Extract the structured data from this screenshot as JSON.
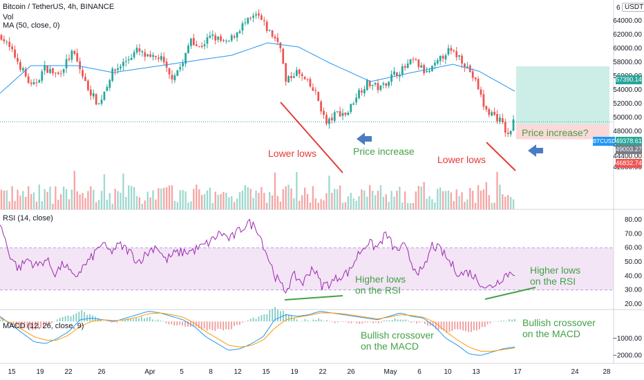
{
  "header": {
    "symbol": "Bitcoin / TetherUS, 4h, BINANCE",
    "vol": "Vol",
    "ma": "MA (50, close, 0)",
    "rsi": "RSI (14, close)",
    "macd": "MACD (12, 26, close, 9)",
    "currency": "USDT",
    "scale_digit": "6"
  },
  "price_tags": {
    "target": "57390.14",
    "symbol_tag": "BTCUSDT",
    "last": "49378.61",
    "entry": "49003.27",
    "stop": "46832.74"
  },
  "annotations": {
    "lower_lows_1": "Lower lows",
    "price_increase": "Price increase",
    "lower_lows_2": "Lower lows",
    "price_increase_q": "Price increase?",
    "higher_lows_1": [
      "Higher lows",
      "on the RSI"
    ],
    "higher_lows_2": [
      "Higher lows",
      "on the RSI"
    ],
    "bullish_1": [
      "Bullish crossover",
      "on the MACD"
    ],
    "bullish_2": [
      "Bullish crossover",
      "on the MACD"
    ]
  },
  "colors": {
    "up": "#26a69a",
    "down": "#ef5350",
    "ma": "#2196f3",
    "rsi": "#9c27b0",
    "rsi_band": "#f3e5f5",
    "annotation_red": "#e53935",
    "annotation_green": "#43a047",
    "arrow": "#4a7cc4",
    "target_zone": "#cdeee7",
    "stop_zone": "#fcd9d9"
  },
  "chart_data": [
    {
      "type": "candlestick",
      "ylim": [
        41500,
        66000
      ],
      "y_ticks": [
        "64000.00",
        "62000.00",
        "60000.00",
        "58000.00",
        "56000.00",
        "54000.00",
        "52000.00",
        "50000.00",
        "48000.00",
        "46000.00",
        "44400.00",
        "42800.00"
      ],
      "x_ticks": [
        "15",
        "19",
        "22",
        "26",
        "Apr",
        "5",
        "8",
        "12",
        "15",
        "19",
        "22",
        "26",
        "May",
        "6",
        "10",
        "13",
        "17",
        "24",
        "28"
      ],
      "close_path": [
        [
          0,
          61800
        ],
        [
          0.03,
          58400
        ],
        [
          0.06,
          54200
        ],
        [
          0.085,
          57200
        ],
        [
          0.11,
          56100
        ],
        [
          0.14,
          59500
        ],
        [
          0.165,
          54800
        ],
        [
          0.19,
          51800
        ],
        [
          0.215,
          56400
        ],
        [
          0.24,
          58000
        ],
        [
          0.265,
          59700
        ],
        [
          0.29,
          58400
        ],
        [
          0.31,
          58800
        ],
        [
          0.33,
          55700
        ],
        [
          0.355,
          57800
        ],
        [
          0.37,
          61600
        ],
        [
          0.385,
          60000
        ],
        [
          0.41,
          61800
        ],
        [
          0.44,
          60600
        ],
        [
          0.47,
          63300
        ],
        [
          0.5,
          64800
        ],
        [
          0.52,
          62700
        ],
        [
          0.545,
          60500
        ],
        [
          0.555,
          55000
        ],
        [
          0.575,
          56700
        ],
        [
          0.595,
          55200
        ],
        [
          0.615,
          53300
        ],
        [
          0.635,
          49000
        ],
        [
          0.655,
          50700
        ],
        [
          0.675,
          50500
        ],
        [
          0.695,
          53500
        ],
        [
          0.715,
          55000
        ],
        [
          0.74,
          54200
        ],
        [
          0.765,
          56200
        ],
        [
          0.785,
          57000
        ],
        [
          0.805,
          58300
        ],
        [
          0.83,
          56300
        ],
        [
          0.85,
          57700
        ],
        [
          0.87,
          59700
        ],
        [
          0.895,
          58800
        ],
        [
          0.915,
          56700
        ],
        [
          0.93,
          54500
        ],
        [
          0.945,
          51000
        ],
        [
          0.96,
          50500
        ],
        [
          0.975,
          49500
        ],
        [
          0.99,
          47200
        ],
        [
          1.0,
          49400
        ]
      ],
      "ma_path": [
        [
          0,
          53500
        ],
        [
          0.06,
          57500
        ],
        [
          0.15,
          57500
        ],
        [
          0.22,
          56500
        ],
        [
          0.33,
          57700
        ],
        [
          0.45,
          59000
        ],
        [
          0.52,
          60800
        ],
        [
          0.58,
          60200
        ],
        [
          0.64,
          57900
        ],
        [
          0.72,
          55200
        ],
        [
          0.8,
          56500
        ],
        [
          0.88,
          57700
        ],
        [
          0.93,
          56700
        ],
        [
          1.0,
          53800
        ]
      ],
      "target_zone": [
        49003.27,
        57390.14
      ],
      "stop_zone": [
        46832.74,
        49003.27
      ],
      "last_price": 49378.61
    },
    {
      "type": "line",
      "name": "RSI (14, close)",
      "ylim": [
        15,
        85
      ],
      "y_ticks": [
        "80.00",
        "70.00",
        "60.00",
        "50.00",
        "40.00",
        "30.00",
        "20.00"
      ],
      "band": [
        30,
        60
      ],
      "values": [
        78,
        56,
        45,
        52,
        47,
        52,
        42,
        49,
        38,
        46,
        53,
        63,
        57,
        62,
        58,
        50,
        56,
        62,
        51,
        56,
        57,
        58,
        61,
        65,
        71,
        66,
        72,
        78,
        74,
        56,
        39,
        29,
        40,
        35,
        47,
        33,
        35,
        40,
        43,
        56,
        64,
        60,
        70,
        58,
        61,
        46,
        42,
        62,
        58,
        49,
        41,
        43,
        37,
        31,
        35,
        41,
        43
      ]
    },
    {
      "type": "line",
      "name": "MACD (12, 26, close, 9)",
      "ylim": [
        -2300,
        700
      ],
      "y_ticks": [
        "-1000.00",
        "-2000.00"
      ],
      "macd": [
        300,
        -200,
        -700,
        -1200,
        -1300,
        -1000,
        -600,
        100,
        200,
        100,
        0,
        200,
        400,
        600,
        500,
        300,
        100,
        -300,
        -900,
        -1300,
        -1700,
        -1600,
        -1300,
        -900,
        100,
        400,
        300,
        400,
        600,
        500,
        400,
        300,
        200,
        100,
        300,
        500,
        300,
        200,
        -300,
        -1000,
        -1400,
        -1900,
        -2000,
        -1800,
        -1600,
        -1500
      ],
      "signal": [
        200,
        -100,
        -500,
        -900,
        -1100,
        -1100,
        -800,
        -300,
        0,
        100,
        50,
        100,
        250,
        450,
        500,
        400,
        250,
        -100,
        -600,
        -1000,
        -1400,
        -1500,
        -1400,
        -1100,
        -400,
        100,
        250,
        350,
        500,
        500,
        450,
        350,
        250,
        150,
        250,
        400,
        350,
        250,
        -50,
        -600,
        -1100,
        -1500,
        -1750,
        -1750,
        -1650,
        -1550
      ]
    }
  ]
}
